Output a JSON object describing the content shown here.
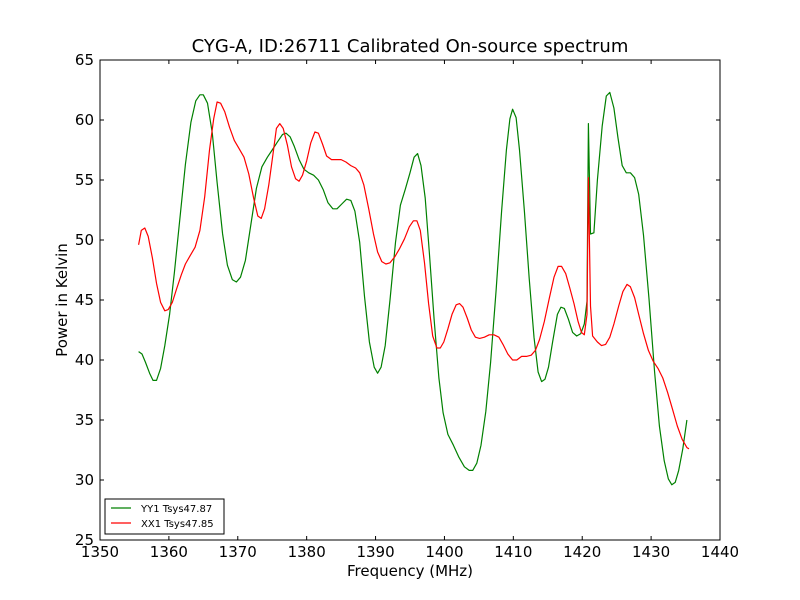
{
  "chart_data": {
    "type": "line",
    "title": "CYG-A, ID:26711 Calibrated On-source spectrum",
    "xlabel": "Frequency (MHz)",
    "ylabel": "Power in Kelvin",
    "xlim": [
      1350,
      1440
    ],
    "ylim": [
      25,
      65
    ],
    "xticks": [
      1350,
      1360,
      1370,
      1380,
      1390,
      1400,
      1410,
      1420,
      1430,
      1440
    ],
    "yticks": [
      25,
      30,
      35,
      40,
      45,
      50,
      55,
      60,
      65
    ],
    "grid": false,
    "legend_position": "lower-left",
    "series": [
      {
        "name": "YY1 Tsys47.87",
        "color": "#008000",
        "points": [
          [
            1355.6,
            40.7
          ],
          [
            1356.1,
            40.5
          ],
          [
            1356.6,
            39.8
          ],
          [
            1357.2,
            38.9
          ],
          [
            1357.7,
            38.3
          ],
          [
            1358.2,
            38.3
          ],
          [
            1358.8,
            39.3
          ],
          [
            1359.4,
            41.2
          ],
          [
            1360.1,
            43.8
          ],
          [
            1360.8,
            47.3
          ],
          [
            1361.6,
            51.8
          ],
          [
            1362.4,
            56.3
          ],
          [
            1363.2,
            59.8
          ],
          [
            1363.9,
            61.6
          ],
          [
            1364.5,
            62.1
          ],
          [
            1365.0,
            62.1
          ],
          [
            1365.6,
            61.4
          ],
          [
            1366.3,
            58.9
          ],
          [
            1367.0,
            54.8
          ],
          [
            1367.8,
            50.5
          ],
          [
            1368.5,
            47.9
          ],
          [
            1369.2,
            46.7
          ],
          [
            1369.8,
            46.5
          ],
          [
            1370.4,
            46.9
          ],
          [
            1371.1,
            48.3
          ],
          [
            1371.9,
            51.3
          ],
          [
            1372.7,
            54.3
          ],
          [
            1373.5,
            56.1
          ],
          [
            1374.3,
            56.9
          ],
          [
            1375.0,
            57.5
          ],
          [
            1375.8,
            58.2
          ],
          [
            1376.5,
            58.8
          ],
          [
            1377.0,
            58.9
          ],
          [
            1377.6,
            58.6
          ],
          [
            1378.2,
            57.8
          ],
          [
            1378.9,
            56.7
          ],
          [
            1379.6,
            55.9
          ],
          [
            1380.3,
            55.6
          ],
          [
            1381.0,
            55.4
          ],
          [
            1381.7,
            55.0
          ],
          [
            1382.4,
            54.2
          ],
          [
            1383.1,
            53.1
          ],
          [
            1383.8,
            52.6
          ],
          [
            1384.4,
            52.6
          ],
          [
            1385.1,
            53.0
          ],
          [
            1385.8,
            53.4
          ],
          [
            1386.4,
            53.3
          ],
          [
            1387.0,
            52.4
          ],
          [
            1387.7,
            49.8
          ],
          [
            1388.4,
            45.3
          ],
          [
            1389.1,
            41.5
          ],
          [
            1389.8,
            39.4
          ],
          [
            1390.3,
            38.9
          ],
          [
            1390.8,
            39.4
          ],
          [
            1391.4,
            41.2
          ],
          [
            1392.1,
            45.0
          ],
          [
            1392.9,
            49.8
          ],
          [
            1393.6,
            52.9
          ],
          [
            1394.3,
            54.2
          ],
          [
            1395.0,
            55.6
          ],
          [
            1395.6,
            56.9
          ],
          [
            1396.1,
            57.2
          ],
          [
            1396.6,
            56.2
          ],
          [
            1397.2,
            53.5
          ],
          [
            1397.8,
            49.0
          ],
          [
            1398.5,
            43.4
          ],
          [
            1399.2,
            38.5
          ],
          [
            1399.8,
            35.6
          ],
          [
            1400.5,
            33.8
          ],
          [
            1401.3,
            32.9
          ],
          [
            1402.1,
            31.9
          ],
          [
            1402.9,
            31.1
          ],
          [
            1403.6,
            30.8
          ],
          [
            1404.1,
            30.8
          ],
          [
            1404.7,
            31.4
          ],
          [
            1405.3,
            32.9
          ],
          [
            1406.0,
            35.7
          ],
          [
            1406.7,
            39.8
          ],
          [
            1407.5,
            45.8
          ],
          [
            1408.3,
            52.4
          ],
          [
            1409.0,
            57.5
          ],
          [
            1409.5,
            60.1
          ],
          [
            1409.9,
            60.9
          ],
          [
            1410.4,
            60.2
          ],
          [
            1410.9,
            57.5
          ],
          [
            1411.6,
            52.4
          ],
          [
            1412.3,
            46.8
          ],
          [
            1413.0,
            41.9
          ],
          [
            1413.6,
            39.0
          ],
          [
            1414.1,
            38.2
          ],
          [
            1414.6,
            38.4
          ],
          [
            1415.1,
            39.4
          ],
          [
            1415.7,
            41.5
          ],
          [
            1416.4,
            43.8
          ],
          [
            1416.9,
            44.4
          ],
          [
            1417.4,
            44.3
          ],
          [
            1418.0,
            43.4
          ],
          [
            1418.6,
            42.3
          ],
          [
            1419.2,
            42.0
          ],
          [
            1419.8,
            42.2
          ],
          [
            1420.3,
            43.0
          ],
          [
            1420.7,
            44.9
          ],
          [
            1420.9,
            59.7
          ],
          [
            1421.2,
            50.5
          ],
          [
            1421.7,
            50.6
          ],
          [
            1422.2,
            55.0
          ],
          [
            1422.9,
            59.5
          ],
          [
            1423.5,
            62.0
          ],
          [
            1424.0,
            62.3
          ],
          [
            1424.6,
            61.0
          ],
          [
            1425.2,
            58.5
          ],
          [
            1425.8,
            56.2
          ],
          [
            1426.4,
            55.6
          ],
          [
            1427.0,
            55.6
          ],
          [
            1427.6,
            55.2
          ],
          [
            1428.2,
            53.8
          ],
          [
            1428.9,
            50.4
          ],
          [
            1429.7,
            45.1
          ],
          [
            1430.5,
            39.0
          ],
          [
            1431.2,
            34.5
          ],
          [
            1431.9,
            31.6
          ],
          [
            1432.5,
            30.1
          ],
          [
            1433.0,
            29.6
          ],
          [
            1433.5,
            29.8
          ],
          [
            1434.0,
            30.8
          ],
          [
            1434.6,
            32.6
          ],
          [
            1435.2,
            35.0
          ]
        ]
      },
      {
        "name": "XX1 Tsys47.85",
        "color": "#ff0000",
        "points": [
          [
            1355.6,
            49.6
          ],
          [
            1356.0,
            50.8
          ],
          [
            1356.5,
            51.0
          ],
          [
            1357.0,
            50.3
          ],
          [
            1357.6,
            48.5
          ],
          [
            1358.2,
            46.4
          ],
          [
            1358.8,
            44.8
          ],
          [
            1359.4,
            44.1
          ],
          [
            1359.9,
            44.2
          ],
          [
            1360.5,
            44.8
          ],
          [
            1361.1,
            45.9
          ],
          [
            1361.8,
            47.1
          ],
          [
            1362.4,
            48.0
          ],
          [
            1363.1,
            48.7
          ],
          [
            1363.8,
            49.4
          ],
          [
            1364.5,
            50.8
          ],
          [
            1365.2,
            53.6
          ],
          [
            1365.9,
            57.5
          ],
          [
            1366.5,
            60.1
          ],
          [
            1367.0,
            61.5
          ],
          [
            1367.5,
            61.4
          ],
          [
            1368.1,
            60.7
          ],
          [
            1368.8,
            59.4
          ],
          [
            1369.5,
            58.3
          ],
          [
            1370.2,
            57.6
          ],
          [
            1370.9,
            56.9
          ],
          [
            1371.6,
            55.5
          ],
          [
            1372.3,
            53.5
          ],
          [
            1372.9,
            52.0
          ],
          [
            1373.4,
            51.8
          ],
          [
            1373.9,
            52.6
          ],
          [
            1374.5,
            54.6
          ],
          [
            1375.1,
            57.1
          ],
          [
            1375.6,
            59.3
          ],
          [
            1376.1,
            59.7
          ],
          [
            1376.6,
            59.3
          ],
          [
            1377.2,
            57.9
          ],
          [
            1377.8,
            56.1
          ],
          [
            1378.4,
            55.1
          ],
          [
            1378.9,
            54.9
          ],
          [
            1379.4,
            55.4
          ],
          [
            1380.0,
            56.6
          ],
          [
            1380.6,
            58.1
          ],
          [
            1381.2,
            59.0
          ],
          [
            1381.7,
            58.9
          ],
          [
            1382.3,
            58.0
          ],
          [
            1382.9,
            57.0
          ],
          [
            1383.6,
            56.7
          ],
          [
            1384.3,
            56.7
          ],
          [
            1385.0,
            56.7
          ],
          [
            1385.7,
            56.5
          ],
          [
            1386.4,
            56.2
          ],
          [
            1387.1,
            56.0
          ],
          [
            1387.7,
            55.6
          ],
          [
            1388.3,
            54.6
          ],
          [
            1389.0,
            52.6
          ],
          [
            1389.7,
            50.5
          ],
          [
            1390.3,
            49.0
          ],
          [
            1390.9,
            48.2
          ],
          [
            1391.5,
            48.0
          ],
          [
            1392.1,
            48.1
          ],
          [
            1392.8,
            48.6
          ],
          [
            1393.5,
            49.3
          ],
          [
            1394.2,
            50.1
          ],
          [
            1394.9,
            51.1
          ],
          [
            1395.5,
            51.6
          ],
          [
            1396.0,
            51.6
          ],
          [
            1396.5,
            50.8
          ],
          [
            1397.1,
            48.1
          ],
          [
            1397.7,
            44.7
          ],
          [
            1398.3,
            42.0
          ],
          [
            1398.9,
            41.0
          ],
          [
            1399.4,
            41.0
          ],
          [
            1399.9,
            41.5
          ],
          [
            1400.5,
            42.6
          ],
          [
            1401.1,
            43.8
          ],
          [
            1401.7,
            44.6
          ],
          [
            1402.2,
            44.7
          ],
          [
            1402.7,
            44.4
          ],
          [
            1403.3,
            43.5
          ],
          [
            1403.9,
            42.5
          ],
          [
            1404.5,
            41.9
          ],
          [
            1405.1,
            41.8
          ],
          [
            1405.8,
            41.9
          ],
          [
            1406.5,
            42.1
          ],
          [
            1407.2,
            42.1
          ],
          [
            1407.9,
            41.9
          ],
          [
            1408.5,
            41.3
          ],
          [
            1409.2,
            40.5
          ],
          [
            1409.9,
            40.0
          ],
          [
            1410.5,
            40.0
          ],
          [
            1411.2,
            40.3
          ],
          [
            1411.9,
            40.3
          ],
          [
            1412.6,
            40.4
          ],
          [
            1413.2,
            40.8
          ],
          [
            1413.8,
            41.7
          ],
          [
            1414.5,
            43.2
          ],
          [
            1415.2,
            45.1
          ],
          [
            1415.9,
            46.9
          ],
          [
            1416.5,
            47.8
          ],
          [
            1417.0,
            47.8
          ],
          [
            1417.6,
            47.2
          ],
          [
            1418.2,
            46.0
          ],
          [
            1418.8,
            44.7
          ],
          [
            1419.4,
            43.2
          ],
          [
            1419.9,
            42.3
          ],
          [
            1420.3,
            42.1
          ],
          [
            1420.7,
            43.8
          ],
          [
            1420.9,
            55.2
          ],
          [
            1421.2,
            44.5
          ],
          [
            1421.5,
            42.0
          ],
          [
            1422.2,
            41.5
          ],
          [
            1422.8,
            41.2
          ],
          [
            1423.4,
            41.3
          ],
          [
            1424.0,
            41.9
          ],
          [
            1424.6,
            43.0
          ],
          [
            1425.3,
            44.5
          ],
          [
            1425.9,
            45.7
          ],
          [
            1426.5,
            46.3
          ],
          [
            1427.0,
            46.1
          ],
          [
            1427.6,
            45.2
          ],
          [
            1428.2,
            43.8
          ],
          [
            1428.9,
            42.2
          ],
          [
            1429.6,
            40.8
          ],
          [
            1430.3,
            39.9
          ],
          [
            1431.0,
            39.3
          ],
          [
            1431.7,
            38.5
          ],
          [
            1432.4,
            37.3
          ],
          [
            1433.1,
            35.9
          ],
          [
            1433.8,
            34.5
          ],
          [
            1434.5,
            33.4
          ],
          [
            1435.2,
            32.7
          ],
          [
            1435.5,
            32.6
          ]
        ]
      }
    ]
  }
}
